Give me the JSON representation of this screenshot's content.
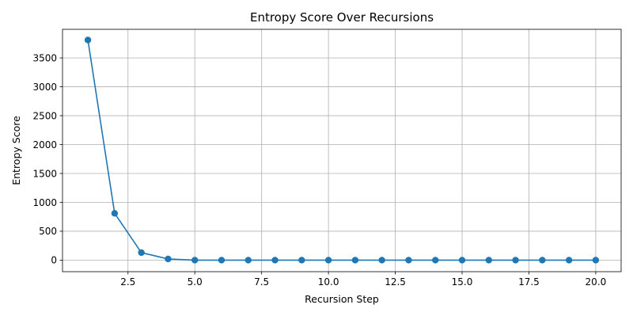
{
  "chart_data": {
    "type": "line",
    "title": "Entropy Score Over Recursions",
    "xlabel": "Recursion Step",
    "ylabel": "Entropy Score",
    "xlim": [
      0.05,
      20.95
    ],
    "ylim": [
      -200,
      3995
    ],
    "x_ticks": [
      2.5,
      5.0,
      7.5,
      10.0,
      12.5,
      15.0,
      17.5,
      20.0
    ],
    "x_tick_labels": [
      "2.5",
      "5.0",
      "7.5",
      "10.0",
      "12.5",
      "15.0",
      "17.5",
      "20.0"
    ],
    "y_ticks": [
      0,
      500,
      1000,
      1500,
      2000,
      2500,
      3000,
      3500
    ],
    "y_tick_labels": [
      "0",
      "500",
      "1000",
      "1500",
      "2000",
      "2500",
      "3000",
      "3500"
    ],
    "grid": true,
    "legend": "none",
    "series": [
      {
        "color": "#1f77b4",
        "marker": "circle",
        "x": [
          1,
          2,
          3,
          4,
          5,
          6,
          7,
          8,
          9,
          10,
          11,
          12,
          13,
          14,
          15,
          16,
          17,
          18,
          19,
          20
        ],
        "values": [
          3810,
          810,
          130,
          20,
          0,
          0,
          0,
          0,
          0,
          0,
          0,
          0,
          0,
          0,
          0,
          0,
          0,
          0,
          0,
          0
        ]
      }
    ]
  }
}
